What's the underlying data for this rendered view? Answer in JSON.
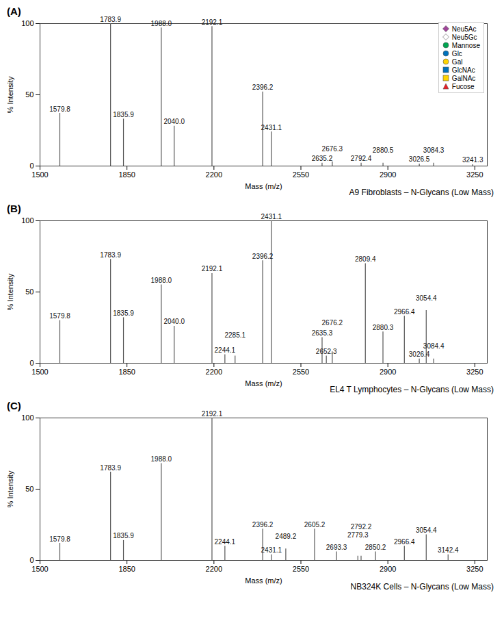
{
  "chart_data": [
    {
      "type": "spectrum",
      "title": "(A)",
      "caption": "A9 Fibroblasts – N-Glycans (Low Mass)",
      "x_label": "Mass (m/z)",
      "y_label": "% Intensity",
      "color": "#555555",
      "xlim": [
        1500,
        3300
      ],
      "xticks": [
        1500,
        1850,
        2200,
        2550,
        2900,
        3250
      ],
      "ylim": [
        0,
        100
      ],
      "yticks": [
        0,
        50,
        100
      ],
      "x": [
        1579.8,
        1783.9,
        1835.9,
        1988.0,
        2040.0,
        2192.1,
        2396.2,
        2431.1,
        2635.2,
        2676.3,
        2792.4,
        2880.5,
        3026.5,
        3084.3,
        3241.3
      ],
      "x_labels": [
        "1579.8",
        "1783.9",
        "1835.9",
        "1988.0",
        "2040.0",
        "2192.1",
        "2396.2",
        "2431.1",
        "2635.2",
        "2676.3",
        "2792.4",
        "2880.5",
        "3026.5",
        "3084.3",
        "3241.3"
      ],
      "values": [
        37,
        100,
        33,
        97,
        28,
        98,
        52,
        24,
        2,
        3,
        2,
        2,
        1.5,
        2,
        1
      ],
      "legend": "top-right",
      "symbol_key": [
        {
          "name": "Neu5Ac",
          "color": "#a0449a",
          "marker": "diamond"
        },
        {
          "name": "Neu5Gc",
          "color": "#ffffff",
          "marker": "diamond"
        },
        {
          "name": "Mannose",
          "color": "#00a651",
          "marker": "circle"
        },
        {
          "name": "Glc",
          "color": "#0072bc",
          "marker": "circle"
        },
        {
          "name": "Gal",
          "color": "#ffd400",
          "marker": "circle"
        },
        {
          "name": "GlcNAc",
          "color": "#0072bc",
          "marker": "square"
        },
        {
          "name": "GalNAc",
          "color": "#ffd400",
          "marker": "square"
        },
        {
          "name": "Fucose",
          "color": "#ed1c24",
          "marker": "triangle"
        }
      ]
    },
    {
      "type": "spectrum",
      "title": "(B)",
      "caption": "EL4 T Lymphocytes – N-Glycans (Low Mass)",
      "x_label": "Mass (m/z)",
      "y_label": "% Intensity",
      "color": "#555555",
      "xlim": [
        1500,
        3300
      ],
      "xticks": [
        1500,
        1850,
        2200,
        2550,
        2900,
        3250
      ],
      "ylim": [
        0,
        100
      ],
      "yticks": [
        0,
        50,
        100
      ],
      "x": [
        1579.8,
        1783.9,
        1835.9,
        1988.0,
        2040.0,
        2192.1,
        2244.1,
        2285.1,
        2396.2,
        2431.1,
        2635.3,
        2652.3,
        2676.2,
        2809.4,
        2880.3,
        2966.4,
        3026.4,
        3054.4,
        3084.4
      ],
      "x_labels": [
        "1579.8",
        "1783.9",
        "1835.9",
        "1988.0",
        "2040.0",
        "2192.1",
        "2244.1",
        "2285.1",
        "2396.2",
        "2431.1",
        "2635.3",
        "2652.3",
        "2676.2",
        "2809.4",
        "2880.3",
        "2966.4",
        "3026.4",
        "3054.4",
        "3084.4"
      ],
      "values": [
        30,
        73,
        32,
        55,
        26,
        63,
        6,
        5,
        72,
        100,
        18,
        5,
        8,
        70,
        22,
        33,
        3,
        37,
        3
      ]
    },
    {
      "type": "spectrum",
      "title": "(C)",
      "caption": "NB324K Cells – N-Glycans (Low Mass)",
      "x_label": "Mass (m/z)",
      "y_label": "% Intensity",
      "color": "#555555",
      "xlim": [
        1500,
        3300
      ],
      "xticks": [
        1500,
        1850,
        2200,
        2550,
        2900,
        3250
      ],
      "ylim": [
        0,
        100
      ],
      "yticks": [
        0,
        50,
        100
      ],
      "x": [
        1579.8,
        1783.9,
        1835.9,
        1988.0,
        2192.1,
        2244.1,
        2396.2,
        2431.1,
        2489.2,
        2605.2,
        2693.3,
        2779.3,
        2792.2,
        2850.2,
        2966.4,
        3054.4,
        3142.4
      ],
      "x_labels": [
        "1579.8",
        "1783.9",
        "1835.9",
        "1988.0",
        "2192.1",
        "2244.1",
        "2396.2",
        "2431.1",
        "2489.2",
        "2605.2",
        "2693.3",
        "2779.3",
        "2792.2",
        "2850.2",
        "2966.4",
        "3054.4",
        "3142.4"
      ],
      "values": [
        12,
        62,
        14,
        68,
        100,
        10,
        22,
        4,
        8,
        22,
        6,
        3,
        3,
        6,
        10,
        18,
        4
      ]
    }
  ]
}
